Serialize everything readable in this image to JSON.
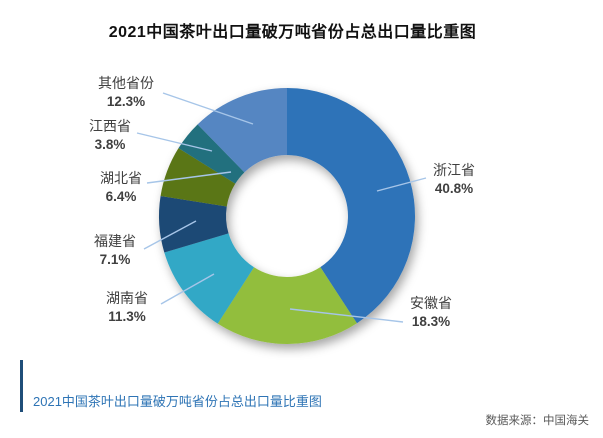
{
  "title": "2021中国茶叶出口量破万吨省份占总出口量比重图",
  "chart_data": {
    "type": "pie",
    "subtype": "donut",
    "start_angle_deg": 0,
    "direction": "clockwise",
    "hole_ratio": 0.48,
    "legend_position": "none",
    "series": [
      {
        "name": "浙江省",
        "value": 40.8,
        "label": "40.8%",
        "color": "#2E73B8"
      },
      {
        "name": "安徽省",
        "value": 18.3,
        "label": "18.3%",
        "color": "#92BE3E"
      },
      {
        "name": "湖南省",
        "value": 11.3,
        "label": "11.3%",
        "color": "#31A8C6"
      },
      {
        "name": "福建省",
        "value": 7.1,
        "label": "7.1%",
        "color": "#1F4874"
      },
      {
        "name": "湖北省",
        "value": 6.4,
        "label": "6.4%",
        "color": "#5A7619"
      },
      {
        "name": "江西省",
        "value": 3.8,
        "label": "3.8%",
        "color": "#20707E"
      },
      {
        "name": "其他省份",
        "value": 12.3,
        "label": "12.3%",
        "color": "#5586C2"
      }
    ],
    "leader_line_color": "#A6C5E8",
    "label_color": "#404040"
  },
  "footer": {
    "caption": "2021中国茶叶出口量破万吨省份占总出口量比重图",
    "caption_color": "#2E74B5",
    "accent_bar_color": "#1F4E79",
    "source": "数据来源：中国海关"
  }
}
